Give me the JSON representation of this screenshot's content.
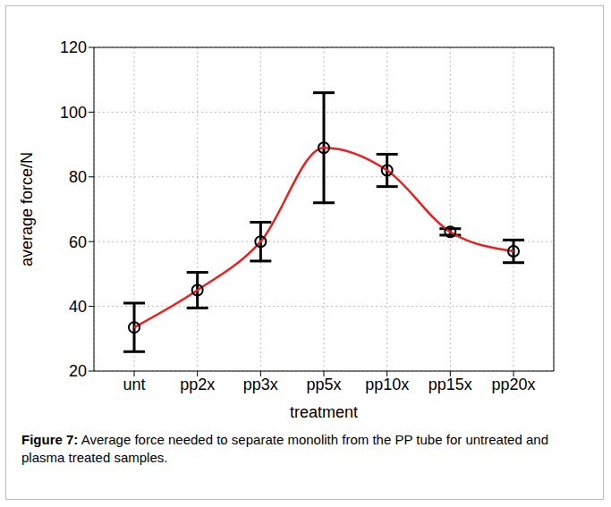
{
  "chart_data": {
    "type": "line",
    "caption": "Figure 7: Average force needed to separate monolith from the PP tube for untreated and plasma treated samples.",
    "xlabel": "treatment",
    "ylabel": "average force/N",
    "categories": [
      "unt",
      "pp2x",
      "pp3x",
      "pp5x",
      "pp10x",
      "pp15x",
      "pp20x"
    ],
    "values": [
      33.5,
      45,
      60,
      89,
      82,
      63,
      57
    ],
    "errors": [
      7.5,
      5.5,
      6,
      17,
      5,
      1,
      3.5
    ],
    "color": "#e8201f",
    "marker": "o",
    "ylim": [
      20,
      120
    ],
    "yticks": [
      20,
      40,
      60,
      80,
      100,
      120
    ],
    "grid": true
  }
}
